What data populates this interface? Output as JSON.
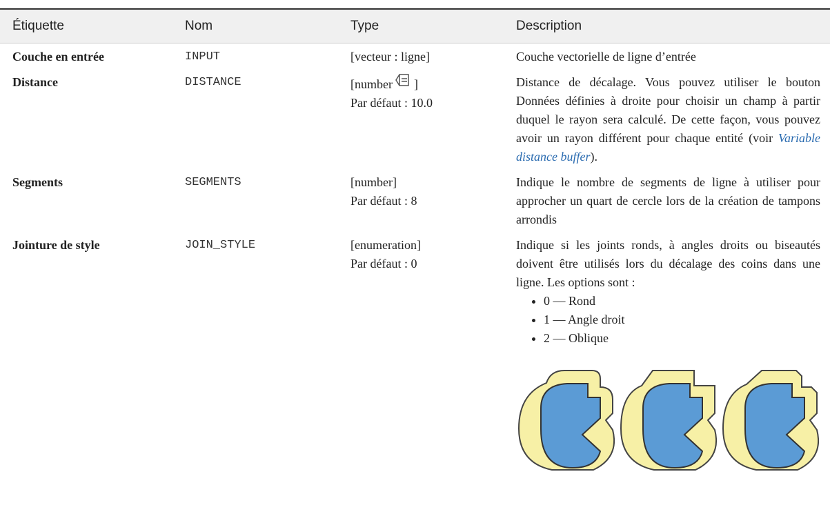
{
  "table": {
    "header": [
      "Étiquette",
      "Nom",
      "Type",
      "Description"
    ],
    "rows": [
      {
        "label": "Couche en entrée",
        "name": "INPUT",
        "type": "[vecteur : ligne]",
        "description": "Couche vectorielle de ligne d’entrée"
      },
      {
        "label": "Distance",
        "name": "DISTANCE",
        "type_before": "[number",
        "type_after": "]",
        "default": "Par défaut : 10.0",
        "description": "Distance de décalage. Vous pouvez utiliser le bouton Données définies à droite pour choisir un champ à partir duquel le rayon sera calculé. De cette façon, vous pouvez avoir un rayon différent pour chaque entité (voir ",
        "link": "Variable distance buffer",
        "description_end": ")."
      },
      {
        "label": "Segments",
        "name": "SEGMENTS",
        "type": "[number]",
        "default": "Par défaut : 8",
        "description": "Indique le nombre de segments de ligne à utiliser pour approcher un quart de cercle lors de la création de tampons arrondis"
      },
      {
        "label": "Jointure de style",
        "name": "JOIN_STYLE",
        "type": "[enumeration]",
        "default": "Par défaut : 0",
        "description": "Indique si les joints ronds, à angles droits ou biseautés doivent être utilisés lors du décalage des coins dans une ligne.  Les options sont :",
        "items": [
          "0 — Rond",
          "1 — Angle droit",
          "2 — Oblique"
        ]
      }
    ]
  }
}
